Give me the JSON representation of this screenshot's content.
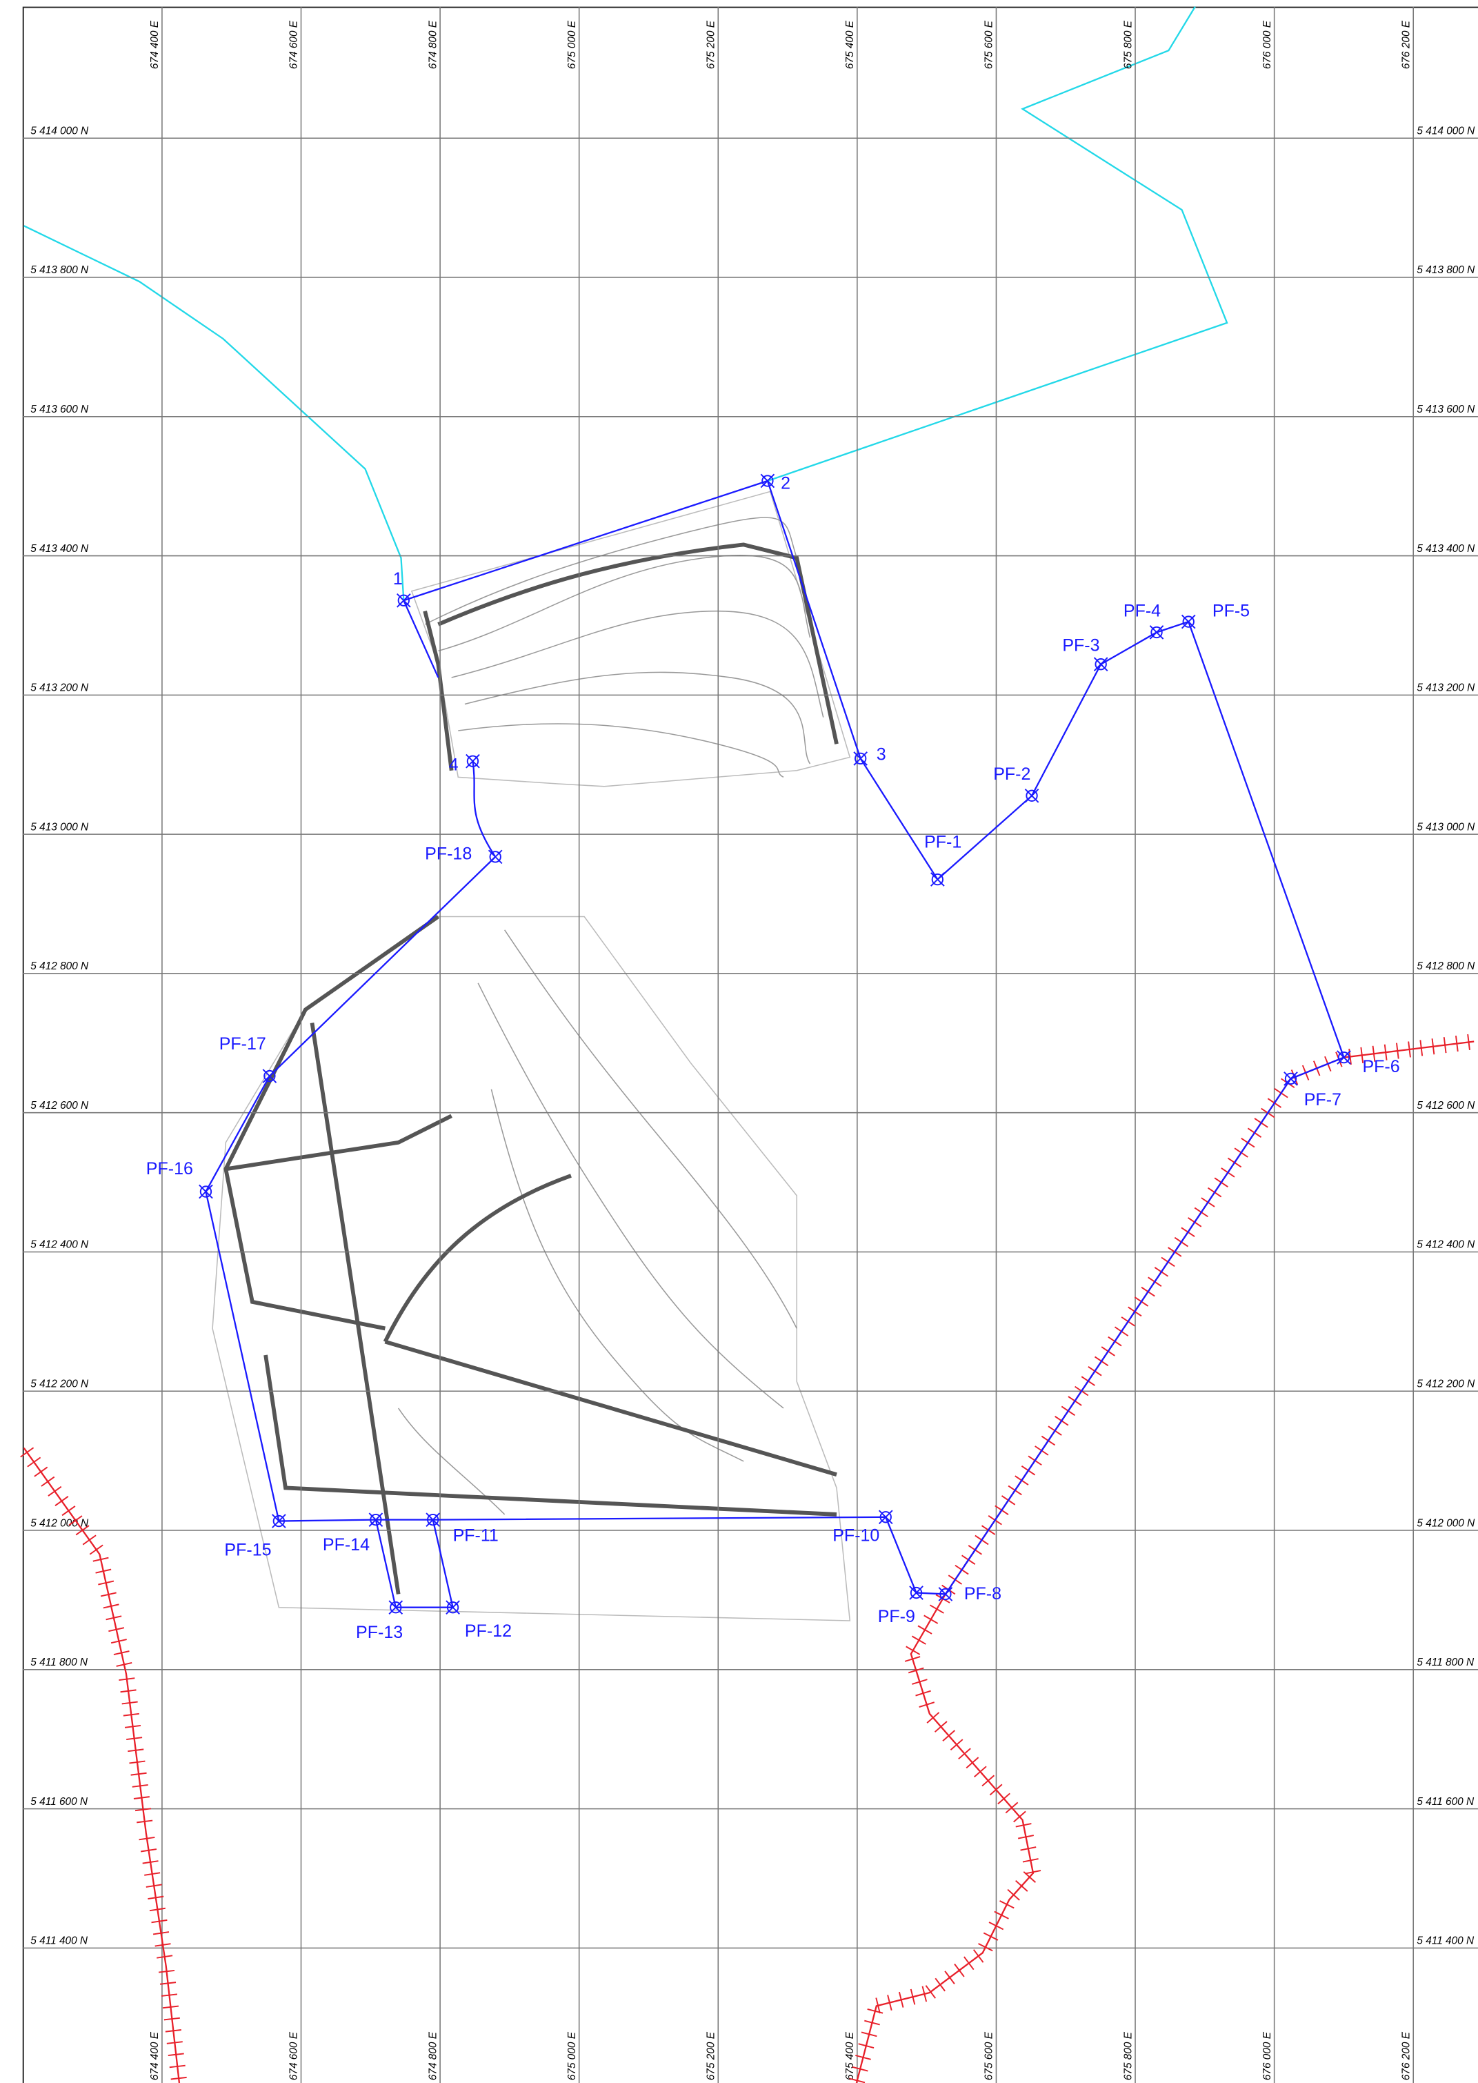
{
  "eastings": [
    "674 400 E",
    "674 600 E",
    "674 800 E",
    "675 000 E",
    "675 200 E",
    "675 400 E",
    "675 600 E",
    "675 800 E",
    "676 000 E",
    "676 200 E"
  ],
  "northings": [
    "5 414 000 N",
    "5 413 800 N",
    "5 413 600 N",
    "5 413 400 N",
    "5 413 200 N",
    "5 413 000 N",
    "5 412 800 N",
    "5 412 600 N",
    "5 412 400 N",
    "5 412 200 N",
    "5 412 000 N",
    "5 411 800 N",
    "5 411 600 N",
    "5 411 400 N"
  ],
  "points": [
    "1",
    "2",
    "3",
    "4",
    "PF-1",
    "PF-2",
    "PF-3",
    "PF-4",
    "PF-5",
    "PF-6",
    "PF-7",
    "PF-8",
    "PF-9",
    "PF-10",
    "PF-11",
    "PF-12",
    "PF-13",
    "PF-14",
    "PF-15",
    "PF-16",
    "PF-17",
    "PF-18"
  ]
}
